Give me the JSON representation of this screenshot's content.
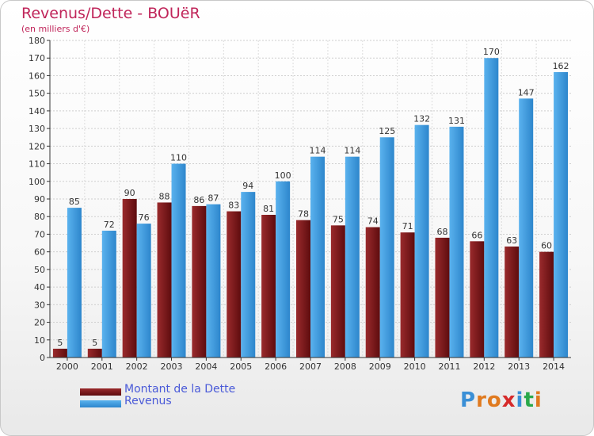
{
  "header": {
    "title": "Revenus/Dette - BOUëR",
    "subtitle": "(en milliers d'€)"
  },
  "chart_data": {
    "type": "bar",
    "categories": [
      "2000",
      "2001",
      "2002",
      "2003",
      "2004",
      "2005",
      "2006",
      "2007",
      "2008",
      "2009",
      "2010",
      "2011",
      "2012",
      "2013",
      "2014"
    ],
    "series": [
      {
        "name": "Montant de la Dette",
        "color": "#7a1416",
        "values": [
          5,
          5,
          90,
          88,
          86,
          83,
          81,
          78,
          75,
          74,
          71,
          68,
          66,
          63,
          60
        ]
      },
      {
        "name": "Revenus",
        "color": "#45a2e6",
        "values": [
          85,
          72,
          76,
          110,
          87,
          94,
          100,
          114,
          114,
          125,
          132,
          131,
          170,
          147,
          162
        ]
      }
    ],
    "ylim": [
      0,
      180
    ],
    "yticks": [
      0,
      10,
      20,
      30,
      40,
      50,
      60,
      70,
      80,
      90,
      100,
      110,
      120,
      130,
      140,
      150,
      160,
      170,
      180
    ],
    "grid": true,
    "legend_position": "bottom-left"
  },
  "legend": {
    "items": [
      {
        "label": "Montant de la Dette",
        "color": "#7a1416"
      },
      {
        "label": "Revenus",
        "color": "#45a2e6"
      }
    ]
  },
  "logo": {
    "letters": [
      "P",
      "r",
      "o",
      "x",
      "i",
      "t",
      "i"
    ],
    "colors": [
      "#3a8fd6",
      "#e07a1f",
      "#e07a1f",
      "#d62a2a",
      "#3a8fd6",
      "#2aa84a",
      "#e07a1f"
    ]
  }
}
